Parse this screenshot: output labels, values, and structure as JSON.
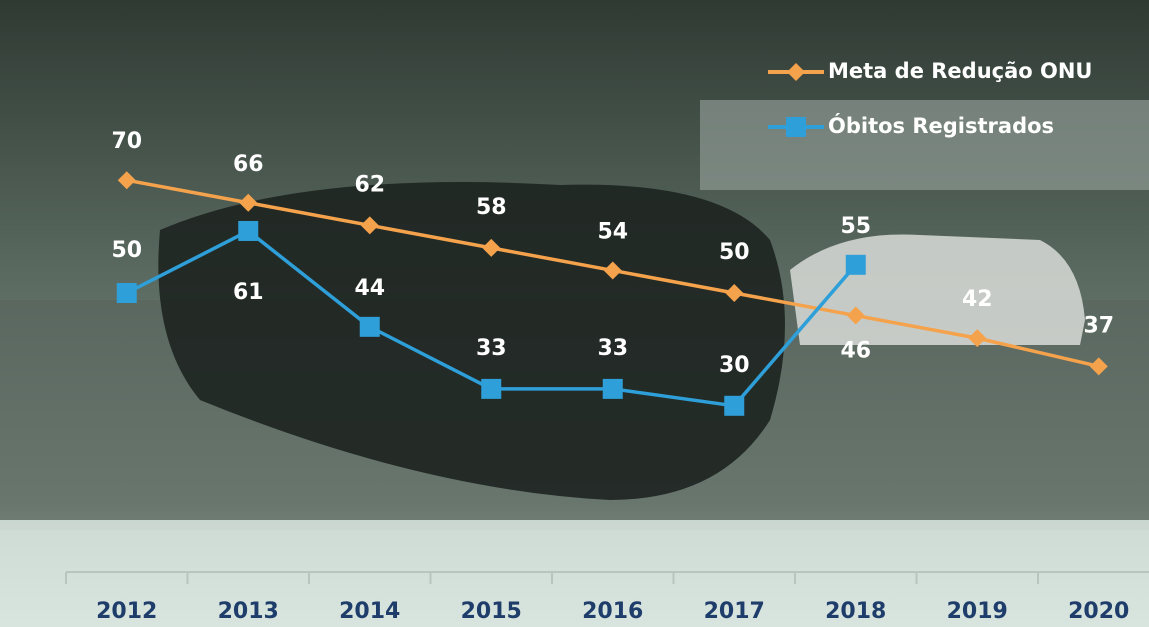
{
  "chart_data": {
    "type": "line",
    "categories": [
      "2012",
      "2013",
      "2014",
      "2015",
      "2016",
      "2017",
      "2018",
      "2019",
      "2020"
    ],
    "series": [
      {
        "name": "Meta de Redução ONU",
        "color": "#f5a24c",
        "marker": "diamond",
        "values": [
          70,
          66,
          62,
          58,
          54,
          50,
          46,
          42,
          37
        ]
      },
      {
        "name": "Óbitos Registrados",
        "color": "#2e9fd8",
        "marker": "square",
        "values": [
          50,
          61,
          44,
          33,
          33,
          30,
          55,
          null,
          null
        ]
      }
    ],
    "ylim": [
      0,
      100
    ],
    "legend": "top-right"
  }
}
